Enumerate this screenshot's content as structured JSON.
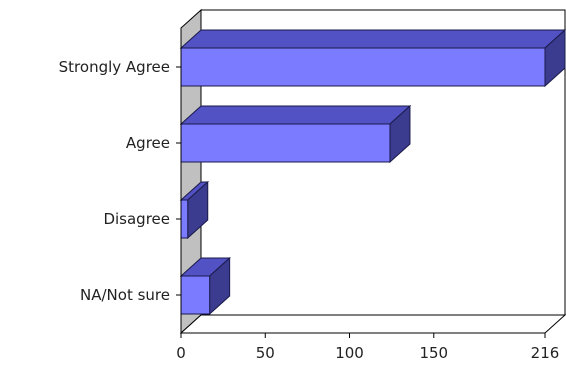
{
  "chart_data": {
    "type": "bar",
    "orientation": "horizontal",
    "style": "3d",
    "title": "",
    "xlabel": "",
    "ylabel": "",
    "categories": [
      "Strongly Agree",
      "Agree",
      "Disagree",
      "NA/Not sure"
    ],
    "values": [
      216,
      124,
      4,
      17
    ],
    "xlim": [
      0,
      216
    ],
    "x_ticks": [
      "0",
      "50",
      "100",
      "150",
      "216"
    ],
    "grid": false,
    "legend": "none",
    "colors": {
      "bar_front": "#7b7bff",
      "bar_top": "#5252c4",
      "bar_side": "#3b3b8f",
      "wall": "#c0c0c0",
      "axis": "#000000"
    }
  }
}
